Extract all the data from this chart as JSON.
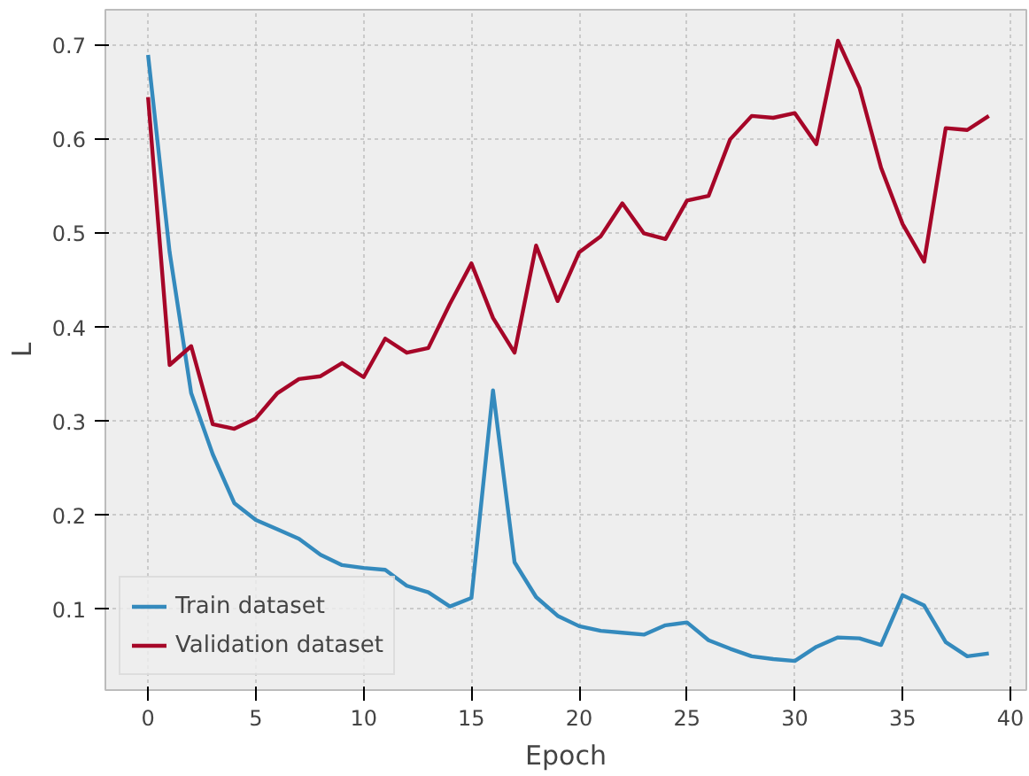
{
  "chart_data": {
    "type": "line",
    "xlabel": "Epoch",
    "ylabel": "L",
    "x": [
      0,
      1,
      2,
      3,
      4,
      5,
      6,
      7,
      8,
      9,
      10,
      11,
      12,
      13,
      14,
      15,
      16,
      17,
      18,
      19,
      20,
      21,
      22,
      23,
      24,
      25,
      26,
      27,
      28,
      29,
      30,
      31,
      32,
      33,
      34,
      35,
      36,
      37,
      38,
      39
    ],
    "series": [
      {
        "name": "Train dataset",
        "color": "#348abd",
        "values": [
          0.69,
          0.48,
          0.33,
          0.265,
          0.213,
          0.195,
          0.185,
          0.175,
          0.158,
          0.147,
          0.144,
          0.142,
          0.125,
          0.118,
          0.103,
          0.112,
          0.333,
          0.15,
          0.113,
          0.093,
          0.082,
          0.077,
          0.075,
          0.073,
          0.083,
          0.086,
          0.067,
          0.058,
          0.05,
          0.047,
          0.045,
          0.06,
          0.07,
          0.069,
          0.062,
          0.115,
          0.104,
          0.065,
          0.05,
          0.053
        ]
      },
      {
        "name": "Validation dataset",
        "color": "#a60628",
        "values": [
          0.645,
          0.36,
          0.38,
          0.297,
          0.292,
          0.303,
          0.33,
          0.345,
          0.348,
          0.362,
          0.347,
          0.388,
          0.373,
          0.378,
          0.425,
          0.468,
          0.41,
          0.373,
          0.487,
          0.428,
          0.48,
          0.497,
          0.532,
          0.5,
          0.494,
          0.535,
          0.54,
          0.6,
          0.625,
          0.623,
          0.628,
          0.595,
          0.705,
          0.655,
          0.57,
          0.51,
          0.47,
          0.612,
          0.61,
          0.625
        ]
      }
    ],
    "xlim": [
      -1.98,
      40.74
    ],
    "ylim": [
      0.014,
      0.738
    ],
    "xticks": [
      0,
      5,
      10,
      15,
      20,
      25,
      30,
      35,
      40
    ],
    "yticks": [
      0.1,
      0.2,
      0.3,
      0.4,
      0.5,
      0.6,
      0.7
    ],
    "grid": true,
    "legend": "bottom left",
    "line_style": "solid",
    "marker": "none"
  }
}
